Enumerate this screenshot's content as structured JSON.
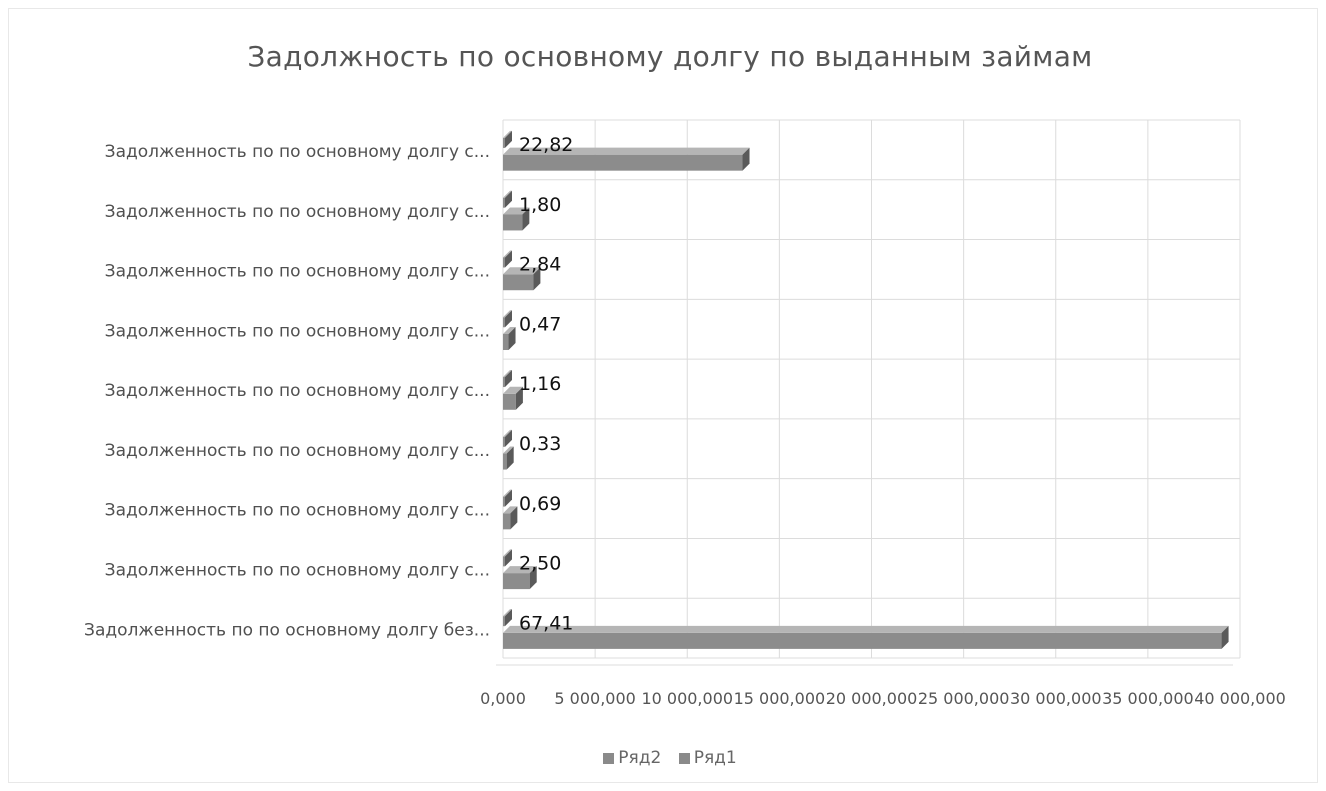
{
  "chart_data": {
    "type": "bar",
    "orientation": "horizontal",
    "three_d": true,
    "title": "Задолжность по основному долгу по выданным займам",
    "categories": [
      "Задолженность по по основному долгу с...",
      "Задолженность по по основному долгу с...",
      "Задолженность по по основному долгу с...",
      "Задолженность по по основному долгу с...",
      "Задолженность по по основному долгу с...",
      "Задолженность по по основному долгу с...",
      "Задолженность по по основному долгу с...",
      "Задолженность по по основному долгу с...",
      "Задолженность по по основному долгу без..."
    ],
    "series": [
      {
        "name": "Ряд2",
        "values": [
          22.82,
          1.8,
          2.84,
          0.47,
          1.16,
          0.33,
          0.69,
          2.5,
          67.41
        ],
        "data_labels": [
          "22,82",
          "1,80",
          "2,84",
          "0,47",
          "1,16",
          "0,33",
          "0,69",
          "2,50",
          "67,41"
        ]
      },
      {
        "name": "Ряд1",
        "values": [
          13000000,
          1050000,
          1650000,
          300000,
          700000,
          200000,
          400000,
          1450000,
          39000000
        ]
      }
    ],
    "x_ticks": [
      "0,000",
      "5 000,000",
      "10 000,000",
      "15 000,000",
      "20 000,000",
      "25 000,000",
      "30 000,000",
      "35 000,000",
      "40 000,000"
    ],
    "xlim": [
      0,
      40000000
    ],
    "grid": true,
    "legend_position": "bottom",
    "colors": {
      "bar": "#8c8c8c",
      "bar_top": "#b5b5b5",
      "bar_side": "#5a5a5a",
      "grid": "#dcdcdc"
    }
  }
}
